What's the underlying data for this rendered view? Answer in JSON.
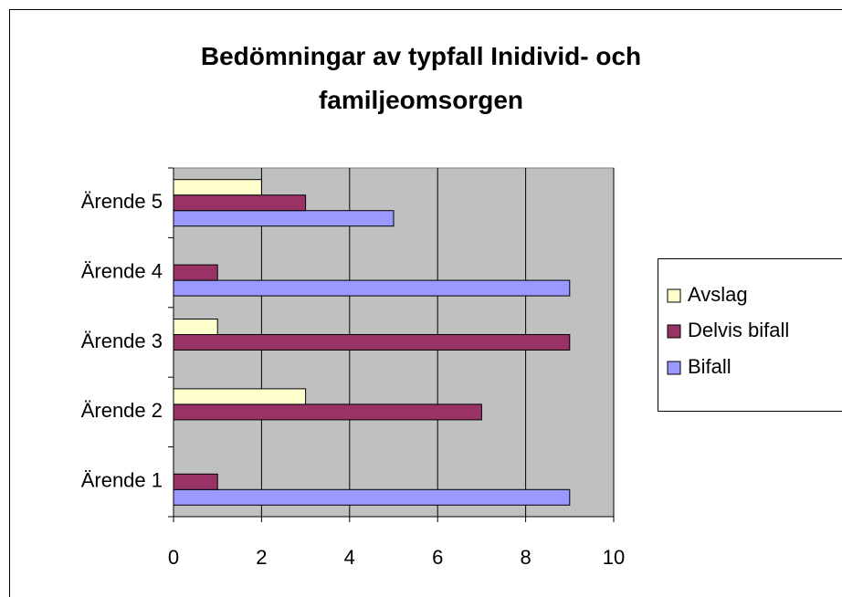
{
  "chart_data": {
    "type": "hbar",
    "title": "Bedömningar av typfall Inidivid- och familjeomsorgen",
    "categories": [
      "Ärende 1",
      "Ärende 2",
      "Ärende 3",
      "Ärende 4",
      "Ärende 5"
    ],
    "series": [
      {
        "name": "Bifall",
        "color": "#9999ff",
        "values": [
          9,
          0,
          0,
          9,
          5
        ]
      },
      {
        "name": "Delvis bifall",
        "color": "#993366",
        "values": [
          1,
          7,
          9,
          1,
          3
        ]
      },
      {
        "name": "Avslag",
        "color": "#ffffcc",
        "values": [
          0,
          3,
          1,
          0,
          2
        ]
      }
    ],
    "xlim": [
      0,
      10
    ],
    "xticks": [
      0,
      2,
      4,
      6,
      8,
      10
    ],
    "grid": true,
    "legend": "right"
  }
}
